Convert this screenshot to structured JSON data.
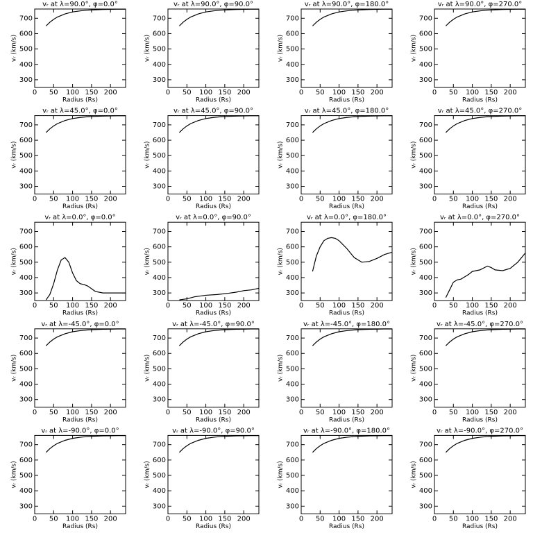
{
  "chart_data": [
    {
      "type": "line",
      "title": "vᵣ at λ=90.0°, φ=0.0°",
      "x_label": "Radius (Rs)",
      "y_label": "vᵣ (km/s)",
      "color": "#000000",
      "x": [
        30,
        40,
        50,
        60,
        80,
        100,
        120,
        140,
        160,
        180,
        200,
        220,
        240
      ],
      "values": [
        650,
        674,
        693,
        708,
        728,
        741,
        748,
        753,
        755,
        757,
        758,
        759,
        759
      ],
      "xlim": [
        0,
        240
      ],
      "ylim": [
        250,
        760
      ],
      "xticks": [
        0,
        50,
        100,
        150,
        200
      ],
      "yticks": [
        300,
        400,
        500,
        600,
        700
      ]
    },
    {
      "type": "line",
      "title": "vᵣ at λ=90.0°, φ=90.0°",
      "x_label": "Radius (Rs)",
      "y_label": "vᵣ (km/s)",
      "color": "#000000",
      "x": [
        30,
        40,
        50,
        60,
        80,
        100,
        120,
        140,
        160,
        180,
        200,
        220,
        240
      ],
      "values": [
        650,
        674,
        693,
        708,
        728,
        741,
        748,
        753,
        755,
        757,
        758,
        759,
        759
      ],
      "xlim": [
        0,
        240
      ],
      "ylim": [
        250,
        760
      ],
      "xticks": [
        0,
        50,
        100,
        150,
        200
      ],
      "yticks": [
        300,
        400,
        500,
        600,
        700
      ]
    },
    {
      "type": "line",
      "title": "vᵣ at λ=90.0°, φ=180.0°",
      "x_label": "Radius (Rs)",
      "y_label": "vᵣ (km/s)",
      "color": "#000000",
      "x": [
        30,
        40,
        50,
        60,
        80,
        100,
        120,
        140,
        160,
        180,
        200,
        220,
        240
      ],
      "values": [
        650,
        674,
        693,
        708,
        728,
        741,
        748,
        753,
        755,
        757,
        758,
        759,
        759
      ],
      "xlim": [
        0,
        240
      ],
      "ylim": [
        250,
        760
      ],
      "xticks": [
        0,
        50,
        100,
        150,
        200
      ],
      "yticks": [
        300,
        400,
        500,
        600,
        700
      ]
    },
    {
      "type": "line",
      "title": "vᵣ at λ=90.0°, φ=270.0°",
      "x_label": "Radius (Rs)",
      "y_label": "vᵣ (km/s)",
      "color": "#000000",
      "x": [
        30,
        40,
        50,
        60,
        80,
        100,
        120,
        140,
        160,
        180,
        200,
        220,
        240
      ],
      "values": [
        650,
        674,
        693,
        708,
        728,
        741,
        748,
        753,
        755,
        757,
        758,
        759,
        759
      ],
      "xlim": [
        0,
        240
      ],
      "ylim": [
        250,
        760
      ],
      "xticks": [
        0,
        50,
        100,
        150,
        200
      ],
      "yticks": [
        300,
        400,
        500,
        600,
        700
      ]
    },
    {
      "type": "line",
      "title": "vᵣ at λ=45.0°, φ=0.0°",
      "x_label": "Radius (Rs)",
      "y_label": "vᵣ (km/s)",
      "color": "#000000",
      "x": [
        30,
        40,
        50,
        60,
        80,
        100,
        120,
        140,
        160,
        180,
        200,
        220,
        240
      ],
      "values": [
        650,
        674,
        693,
        708,
        728,
        741,
        748,
        753,
        755,
        757,
        758,
        759,
        759
      ],
      "xlim": [
        0,
        240
      ],
      "ylim": [
        250,
        760
      ],
      "xticks": [
        0,
        50,
        100,
        150,
        200
      ],
      "yticks": [
        300,
        400,
        500,
        600,
        700
      ]
    },
    {
      "type": "line",
      "title": "vᵣ at λ=45.0°, φ=90.0°",
      "x_label": "Radius (Rs)",
      "y_label": "vᵣ (km/s)",
      "color": "#000000",
      "x": [
        30,
        40,
        50,
        60,
        80,
        100,
        120,
        140,
        160,
        180,
        200,
        220,
        240
      ],
      "values": [
        650,
        674,
        693,
        708,
        728,
        741,
        748,
        753,
        755,
        757,
        758,
        759,
        759
      ],
      "xlim": [
        0,
        240
      ],
      "ylim": [
        250,
        760
      ],
      "xticks": [
        0,
        50,
        100,
        150,
        200
      ],
      "yticks": [
        300,
        400,
        500,
        600,
        700
      ]
    },
    {
      "type": "line",
      "title": "vᵣ at λ=45.0°, φ=180.0°",
      "x_label": "Radius (Rs)",
      "y_label": "vᵣ (km/s)",
      "color": "#000000",
      "x": [
        30,
        40,
        50,
        60,
        80,
        100,
        120,
        140,
        160,
        180,
        200,
        220,
        240
      ],
      "values": [
        650,
        674,
        693,
        708,
        728,
        741,
        748,
        753,
        755,
        757,
        758,
        759,
        759
      ],
      "xlim": [
        0,
        240
      ],
      "ylim": [
        250,
        760
      ],
      "xticks": [
        0,
        50,
        100,
        150,
        200
      ],
      "yticks": [
        300,
        400,
        500,
        600,
        700
      ]
    },
    {
      "type": "line",
      "title": "vᵣ at λ=45.0°, φ=270.0°",
      "x_label": "Radius (Rs)",
      "y_label": "vᵣ (km/s)",
      "color": "#000000",
      "x": [
        30,
        40,
        50,
        60,
        80,
        100,
        120,
        140,
        160,
        180,
        200,
        220,
        240
      ],
      "values": [
        650,
        674,
        693,
        708,
        728,
        741,
        748,
        753,
        755,
        757,
        758,
        759,
        759
      ],
      "xlim": [
        0,
        240
      ],
      "ylim": [
        250,
        760
      ],
      "xticks": [
        0,
        50,
        100,
        150,
        200
      ],
      "yticks": [
        300,
        400,
        500,
        600,
        700
      ]
    },
    {
      "type": "line",
      "title": "vᵣ at λ=0.0°, φ=0.0°",
      "x_label": "Radius (Rs)",
      "y_label": "vᵣ (km/s)",
      "color": "#000000",
      "x": [
        30,
        40,
        50,
        60,
        70,
        80,
        90,
        100,
        110,
        120,
        130,
        140,
        160,
        180,
        200,
        220,
        240
      ],
      "values": [
        255,
        290,
        360,
        450,
        515,
        530,
        500,
        430,
        380,
        360,
        355,
        345,
        310,
        300,
        300,
        300,
        300
      ],
      "xlim": [
        0,
        240
      ],
      "ylim": [
        250,
        760
      ],
      "xticks": [
        0,
        50,
        100,
        150,
        200
      ],
      "yticks": [
        300,
        400,
        500,
        600,
        700
      ]
    },
    {
      "type": "line",
      "title": "vᵣ at λ=0.0°, φ=90.0°",
      "x_label": "Radius (Rs)",
      "y_label": "vᵣ (km/s)",
      "color": "#000000",
      "x": [
        30,
        50,
        70,
        100,
        130,
        160,
        180,
        200,
        220,
        240
      ],
      "values": [
        255,
        262,
        275,
        285,
        290,
        298,
        305,
        315,
        320,
        330
      ],
      "xlim": [
        0,
        240
      ],
      "ylim": [
        250,
        760
      ],
      "xticks": [
        0,
        50,
        100,
        150,
        200
      ],
      "yticks": [
        300,
        400,
        500,
        600,
        700
      ]
    },
    {
      "type": "line",
      "title": "vᵣ at λ=0.0°, φ=180.0°",
      "x_label": "Radius (Rs)",
      "y_label": "vᵣ (km/s)",
      "color": "#000000",
      "x": [
        30,
        40,
        50,
        60,
        70,
        80,
        90,
        100,
        120,
        140,
        160,
        180,
        200,
        220,
        240
      ],
      "values": [
        440,
        540,
        600,
        640,
        655,
        660,
        655,
        640,
        590,
        530,
        500,
        505,
        525,
        550,
        565
      ],
      "xlim": [
        0,
        240
      ],
      "ylim": [
        250,
        760
      ],
      "xticks": [
        0,
        50,
        100,
        150,
        200
      ],
      "yticks": [
        300,
        400,
        500,
        600,
        700
      ]
    },
    {
      "type": "line",
      "title": "vᵣ at λ=0.0°, φ=270.0°",
      "x_label": "Radius (Rs)",
      "y_label": "vᵣ (km/s)",
      "color": "#000000",
      "x": [
        30,
        40,
        50,
        60,
        70,
        80,
        90,
        100,
        120,
        140,
        150,
        160,
        180,
        200,
        220,
        240
      ],
      "values": [
        270,
        320,
        370,
        385,
        390,
        405,
        420,
        440,
        450,
        475,
        465,
        450,
        445,
        460,
        500,
        560
      ],
      "xlim": [
        0,
        240
      ],
      "ylim": [
        250,
        760
      ],
      "xticks": [
        0,
        50,
        100,
        150,
        200
      ],
      "yticks": [
        300,
        400,
        500,
        600,
        700
      ]
    },
    {
      "type": "line",
      "title": "vᵣ at λ=-45.0°, φ=0.0°",
      "x_label": "Radius (Rs)",
      "y_label": "vᵣ (km/s)",
      "color": "#000000",
      "x": [
        30,
        40,
        50,
        60,
        80,
        100,
        120,
        140,
        160,
        180,
        200,
        220,
        240
      ],
      "values": [
        650,
        674,
        693,
        708,
        728,
        741,
        748,
        753,
        755,
        757,
        758,
        759,
        759
      ],
      "xlim": [
        0,
        240
      ],
      "ylim": [
        250,
        760
      ],
      "xticks": [
        0,
        50,
        100,
        150,
        200
      ],
      "yticks": [
        300,
        400,
        500,
        600,
        700
      ]
    },
    {
      "type": "line",
      "title": "vᵣ at λ=-45.0°, φ=90.0°",
      "x_label": "Radius (Rs)",
      "y_label": "vᵣ (km/s)",
      "color": "#000000",
      "x": [
        30,
        40,
        50,
        60,
        80,
        100,
        120,
        140,
        160,
        180,
        200,
        220,
        240
      ],
      "values": [
        650,
        674,
        693,
        708,
        728,
        741,
        748,
        753,
        755,
        757,
        758,
        759,
        759
      ],
      "xlim": [
        0,
        240
      ],
      "ylim": [
        250,
        760
      ],
      "xticks": [
        0,
        50,
        100,
        150,
        200
      ],
      "yticks": [
        300,
        400,
        500,
        600,
        700
      ]
    },
    {
      "type": "line",
      "title": "vᵣ at λ=-45.0°, φ=180.0°",
      "x_label": "Radius (Rs)",
      "y_label": "vᵣ (km/s)",
      "color": "#000000",
      "x": [
        30,
        40,
        50,
        60,
        80,
        100,
        120,
        140,
        160,
        180,
        200,
        220,
        240
      ],
      "values": [
        650,
        674,
        693,
        708,
        728,
        741,
        748,
        753,
        755,
        757,
        758,
        759,
        759
      ],
      "xlim": [
        0,
        240
      ],
      "ylim": [
        250,
        760
      ],
      "xticks": [
        0,
        50,
        100,
        150,
        200
      ],
      "yticks": [
        300,
        400,
        500,
        600,
        700
      ]
    },
    {
      "type": "line",
      "title": "vᵣ at λ=-45.0°, φ=270.0°",
      "x_label": "Radius (Rs)",
      "y_label": "vᵣ (km/s)",
      "color": "#000000",
      "x": [
        30,
        40,
        50,
        60,
        80,
        100,
        120,
        140,
        160,
        180,
        200,
        220,
        240
      ],
      "values": [
        650,
        674,
        693,
        708,
        728,
        741,
        748,
        753,
        755,
        757,
        758,
        759,
        759
      ],
      "xlim": [
        0,
        240
      ],
      "ylim": [
        250,
        760
      ],
      "xticks": [
        0,
        50,
        100,
        150,
        200
      ],
      "yticks": [
        300,
        400,
        500,
        600,
        700
      ]
    },
    {
      "type": "line",
      "title": "vᵣ at λ=-90.0°, φ=0.0°",
      "x_label": "Radius (Rs)",
      "y_label": "vᵣ (km/s)",
      "color": "#000000",
      "x": [
        30,
        40,
        50,
        60,
        80,
        100,
        120,
        140,
        160,
        180,
        200,
        220,
        240
      ],
      "values": [
        650,
        674,
        693,
        708,
        728,
        741,
        748,
        753,
        755,
        757,
        758,
        759,
        759
      ],
      "xlim": [
        0,
        240
      ],
      "ylim": [
        250,
        760
      ],
      "xticks": [
        0,
        50,
        100,
        150,
        200
      ],
      "yticks": [
        300,
        400,
        500,
        600,
        700
      ]
    },
    {
      "type": "line",
      "title": "vᵣ at λ=-90.0°, φ=90.0°",
      "x_label": "Radius (Rs)",
      "y_label": "vᵣ (km/s)",
      "color": "#000000",
      "x": [
        30,
        40,
        50,
        60,
        80,
        100,
        120,
        140,
        160,
        180,
        200,
        220,
        240
      ],
      "values": [
        650,
        674,
        693,
        708,
        728,
        741,
        748,
        753,
        755,
        757,
        758,
        759,
        759
      ],
      "xlim": [
        0,
        240
      ],
      "ylim": [
        250,
        760
      ],
      "xticks": [
        0,
        50,
        100,
        150,
        200
      ],
      "yticks": [
        300,
        400,
        500,
        600,
        700
      ]
    },
    {
      "type": "line",
      "title": "vᵣ at λ=-90.0°, φ=180.0°",
      "x_label": "Radius (Rs)",
      "y_label": "vᵣ (km/s)",
      "color": "#000000",
      "x": [
        30,
        40,
        50,
        60,
        80,
        100,
        120,
        140,
        160,
        180,
        200,
        220,
        240
      ],
      "values": [
        650,
        674,
        693,
        708,
        728,
        741,
        748,
        753,
        755,
        757,
        758,
        759,
        759
      ],
      "xlim": [
        0,
        240
      ],
      "ylim": [
        250,
        760
      ],
      "xticks": [
        0,
        50,
        100,
        150,
        200
      ],
      "yticks": [
        300,
        400,
        500,
        600,
        700
      ]
    },
    {
      "type": "line",
      "title": "vᵣ at λ=-90.0°, φ=270.0°",
      "x_label": "Radius (Rs)",
      "y_label": "vᵣ (km/s)",
      "color": "#000000",
      "x": [
        30,
        40,
        50,
        60,
        80,
        100,
        120,
        140,
        160,
        180,
        200,
        220,
        240
      ],
      "values": [
        650,
        674,
        693,
        708,
        728,
        741,
        748,
        753,
        755,
        757,
        758,
        759,
        759
      ],
      "xlim": [
        0,
        240
      ],
      "ylim": [
        250,
        760
      ],
      "xticks": [
        0,
        50,
        100,
        150,
        200
      ],
      "yticks": [
        300,
        400,
        500,
        600,
        700
      ]
    }
  ]
}
